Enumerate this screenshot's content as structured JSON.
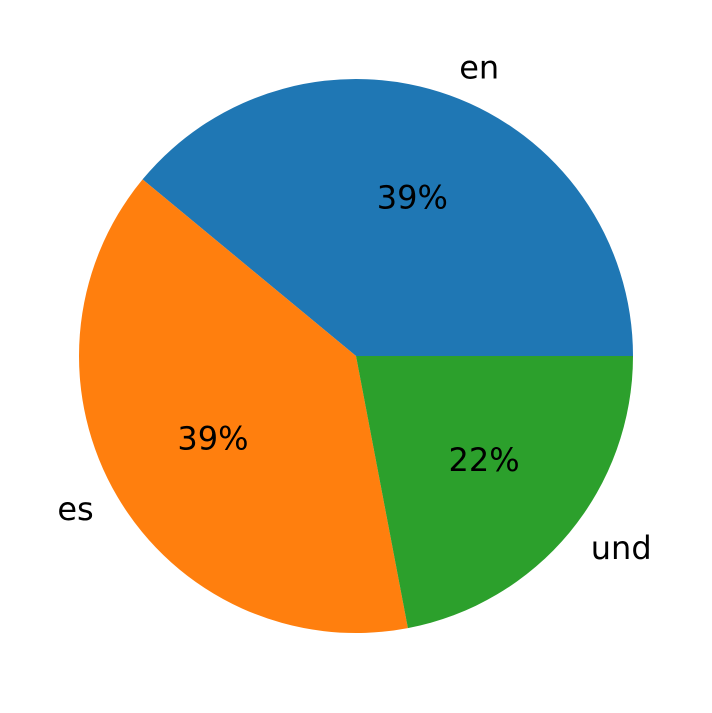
{
  "chart_data": {
    "type": "pie",
    "categories": [
      "en",
      "es",
      "und"
    ],
    "values": [
      39,
      39,
      22
    ],
    "value_labels": [
      "39%",
      "39%",
      "22%"
    ],
    "colors": [
      "#1f77b4",
      "#ff7f0e",
      "#2ca02c"
    ]
  }
}
